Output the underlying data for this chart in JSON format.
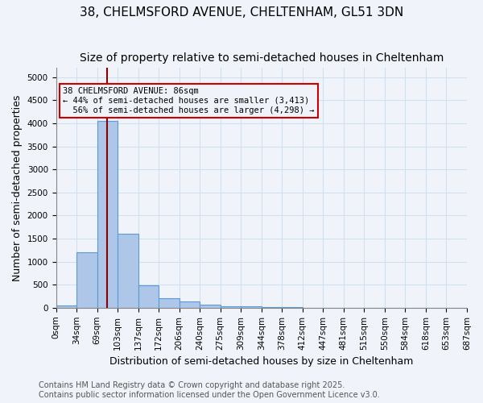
{
  "title_line1": "38, CHELMSFORD AVENUE, CHELTENHAM, GL51 3DN",
  "title_line2": "Size of property relative to semi-detached houses in Cheltenham",
  "xlabel": "Distribution of semi-detached houses by size in Cheltenham",
  "ylabel": "Number of semi-detached properties",
  "bar_values": [
    50,
    1200,
    4050,
    1600,
    480,
    200,
    130,
    70,
    40,
    25,
    15,
    10,
    5,
    3,
    2,
    1,
    1,
    0,
    0,
    0
  ],
  "bar_labels": [
    "0sqm",
    "34sqm",
    "69sqm",
    "103sqm",
    "137sqm",
    "172sqm",
    "206sqm",
    "240sqm",
    "275sqm",
    "309sqm",
    "344sqm",
    "378sqm",
    "412sqm",
    "447sqm",
    "481sqm",
    "515sqm",
    "550sqm",
    "584sqm",
    "618sqm",
    "653sqm",
    "687sqm"
  ],
  "bar_color": "#aec6e8",
  "bar_edge_color": "#5b9bd5",
  "grid_color": "#d0e0f0",
  "red_line_x": 2.47,
  "red_line_color": "#8b0000",
  "annotation_box_text": "38 CHELMSFORD AVENUE: 86sqm\n← 44% of semi-detached houses are smaller (3,413)\n  56% of semi-detached houses are larger (4,298) →",
  "annotation_box_color": "#cc0000",
  "ylim": [
    0,
    5200
  ],
  "yticks": [
    0,
    500,
    1000,
    1500,
    2000,
    2500,
    3000,
    3500,
    4000,
    4500,
    5000
  ],
  "background_color": "#f0f4fa",
  "footnote": "Contains HM Land Registry data © Crown copyright and database right 2025.\nContains public sector information licensed under the Open Government Licence v3.0.",
  "title_fontsize": 11,
  "subtitle_fontsize": 10,
  "label_fontsize": 9,
  "tick_fontsize": 7.5,
  "footnote_fontsize": 7
}
